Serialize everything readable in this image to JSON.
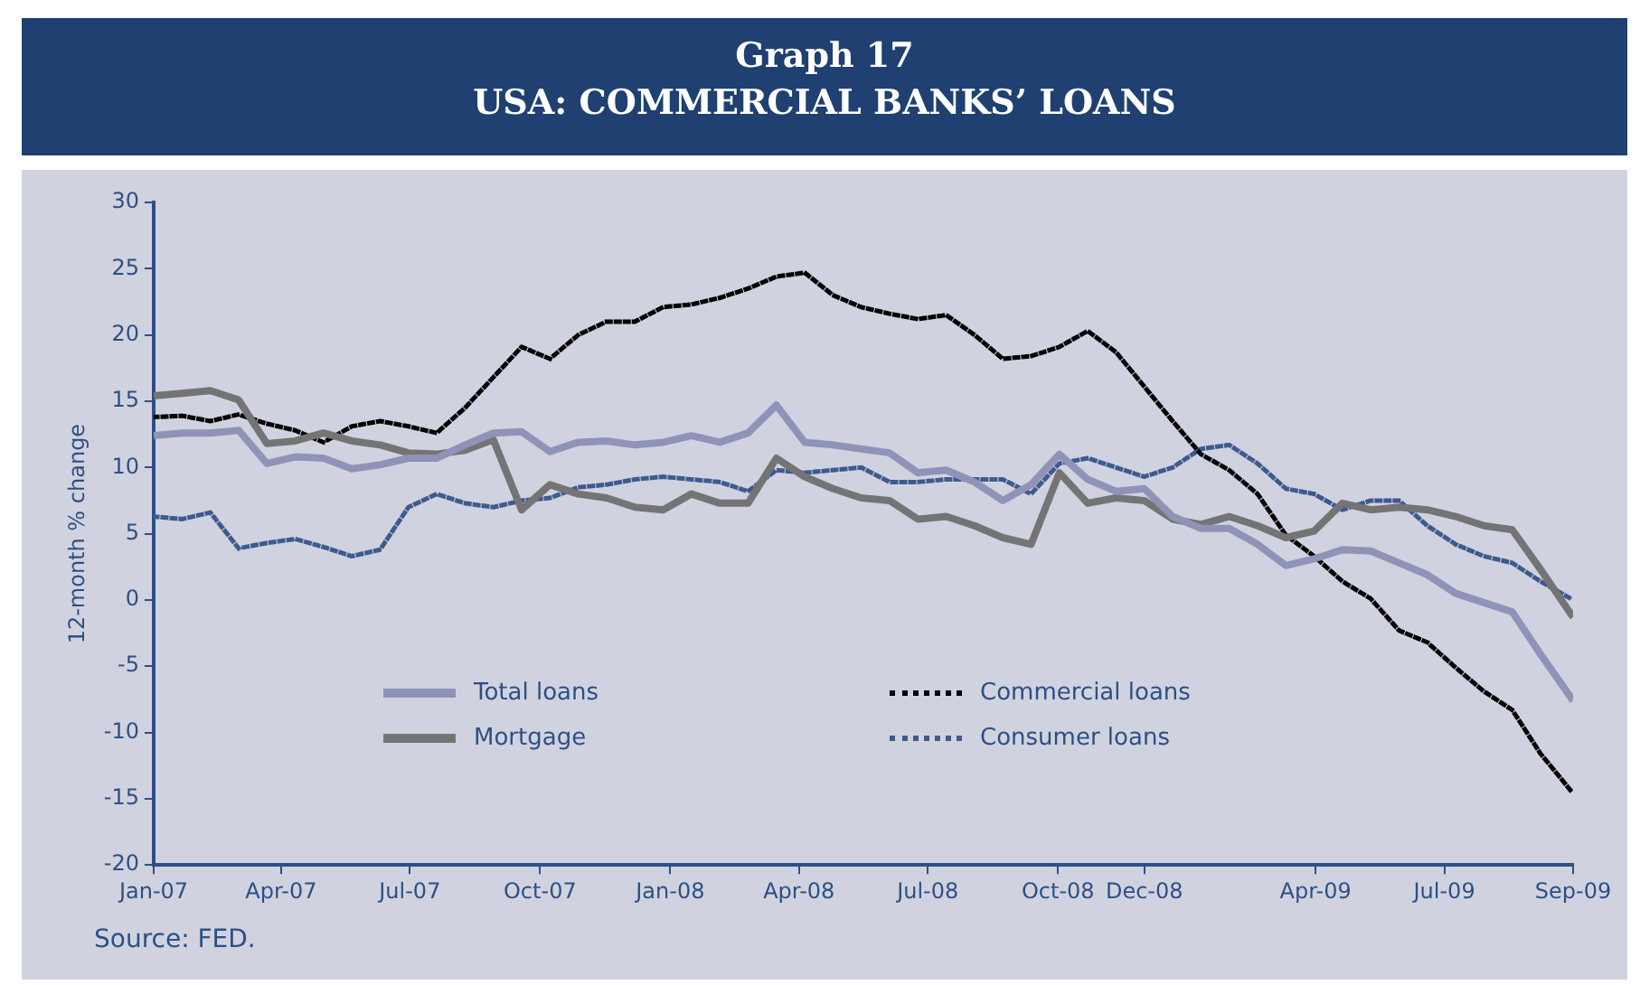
{
  "chart_data": {
    "type": "line",
    "title": "Graph 17",
    "subtitle": "USA: COMMERCIAL BANKS’ LOANS",
    "ylabel": "12-month % change",
    "annotations": [
      "Source: FED."
    ],
    "x": [
      "2007-01-01",
      "2007-01-21",
      "2007-02-10",
      "2007-03-02",
      "2007-03-22",
      "2007-04-11",
      "2007-05-01",
      "2007-05-21",
      "2007-06-10",
      "2007-06-30",
      "2007-07-20",
      "2007-08-09",
      "2007-08-29",
      "2007-09-18",
      "2007-10-08",
      "2007-10-28",
      "2007-11-17",
      "2007-12-07",
      "2007-12-27",
      "2008-01-16",
      "2008-02-05",
      "2008-02-25",
      "2008-03-16",
      "2008-04-05",
      "2008-04-25",
      "2008-05-15",
      "2008-06-04",
      "2008-06-24",
      "2008-07-14",
      "2008-08-03",
      "2008-08-23",
      "2008-09-12",
      "2008-10-02",
      "2008-10-22",
      "2008-11-11",
      "2008-12-01",
      "2008-12-21",
      "2009-01-10",
      "2009-01-30",
      "2009-02-19",
      "2009-03-11",
      "2009-03-31",
      "2009-04-20",
      "2009-05-10",
      "2009-05-30",
      "2009-06-19",
      "2009-07-09",
      "2009-07-29",
      "2009-08-18",
      "2009-09-07",
      "2009-09-30"
    ],
    "series": [
      {
        "name": "Total loans",
        "color": "#8f93b8",
        "line_style": "solid",
        "values": [
          12.4,
          12.6,
          12.6,
          12.8,
          10.3,
          10.8,
          10.7,
          9.9,
          10.2,
          10.7,
          10.7,
          11.7,
          12.6,
          12.7,
          11.2,
          11.9,
          12.0,
          11.7,
          11.9,
          12.4,
          11.9,
          12.6,
          14.7,
          11.9,
          11.7,
          11.4,
          11.1,
          9.6,
          9.8,
          8.9,
          7.5,
          8.7,
          11.0,
          9.1,
          8.2,
          8.4,
          6.3,
          5.4,
          5.4,
          4.2,
          2.6,
          3.1,
          3.8,
          3.7,
          2.8,
          1.9,
          0.5,
          -0.2,
          -0.9,
          -4.1,
          -7.6
        ]
      },
      {
        "name": "Mortgage",
        "color": "#747474",
        "line_style": "solid",
        "values": [
          15.4,
          15.6,
          15.8,
          15.1,
          11.8,
          12.0,
          12.6,
          12.0,
          11.7,
          11.1,
          11.0,
          11.3,
          12.1,
          6.8,
          8.7,
          8.0,
          7.7,
          7.0,
          6.8,
          8.0,
          7.3,
          7.3,
          10.7,
          9.3,
          8.4,
          7.7,
          7.5,
          6.1,
          6.3,
          5.6,
          4.7,
          4.2,
          9.6,
          7.3,
          7.7,
          7.5,
          6.1,
          5.7,
          6.3,
          5.6,
          4.7,
          5.2,
          7.3,
          6.8,
          7.0,
          6.8,
          6.3,
          5.6,
          5.3,
          2.3,
          -1.3
        ]
      },
      {
        "name": "Commercial loans",
        "color": "#000000",
        "line_style": "dotted",
        "values": [
          13.8,
          13.9,
          13.5,
          14.0,
          13.3,
          12.8,
          11.9,
          13.1,
          13.5,
          13.1,
          12.6,
          14.5,
          16.8,
          19.1,
          18.2,
          20.0,
          21.0,
          21.0,
          22.1,
          22.3,
          22.8,
          23.5,
          24.4,
          24.7,
          23.0,
          22.1,
          21.6,
          21.2,
          21.5,
          20.0,
          18.2,
          18.4,
          19.1,
          20.3,
          18.7,
          16.1,
          13.5,
          11.0,
          9.8,
          8.0,
          4.9,
          3.3,
          1.4,
          0.1,
          -2.3,
          -3.2,
          -5.1,
          -6.9,
          -8.3,
          -11.6,
          -14.6
        ]
      },
      {
        "name": "Consumer loans",
        "color": "#3e5a8f",
        "line_style": "dotted",
        "values": [
          6.3,
          6.1,
          6.6,
          3.9,
          4.3,
          4.6,
          4.0,
          3.3,
          3.8,
          7.0,
          8.0,
          7.3,
          7.0,
          7.5,
          7.7,
          8.5,
          8.7,
          9.1,
          9.3,
          9.1,
          8.9,
          8.2,
          9.8,
          9.6,
          9.8,
          10.0,
          8.9,
          8.9,
          9.1,
          9.1,
          9.1,
          8.0,
          10.3,
          10.7,
          10.0,
          9.3,
          10.0,
          11.4,
          11.7,
          10.3,
          8.4,
          8.0,
          6.8,
          7.5,
          7.5,
          5.6,
          4.2,
          3.3,
          2.8,
          1.4,
          0.0
        ]
      }
    ],
    "xlim": [
      "2007-01-01",
      "2009-09-30"
    ],
    "xticks": [
      {
        "value": "2007-01",
        "label": "Jan-07"
      },
      {
        "value": "2007-04",
        "label": "Apr-07"
      },
      {
        "value": "2007-07",
        "label": "Jul-07"
      },
      {
        "value": "2007-10",
        "label": "Oct-07"
      },
      {
        "value": "2008-01",
        "label": "Jan-08"
      },
      {
        "value": "2008-04",
        "label": "Apr-08"
      },
      {
        "value": "2008-07",
        "label": "Jul-08"
      },
      {
        "value": "2008-10",
        "label": "Oct-08"
      },
      {
        "value": "2008-12",
        "label": "Dec-08"
      },
      {
        "value": "2009-04",
        "label": "Apr-09"
      },
      {
        "value": "2009-07",
        "label": "Jul-09"
      },
      {
        "value": "2009-09-30",
        "label": "Sep-09"
      }
    ],
    "ylim": [
      -20,
      30
    ],
    "yticks": [
      -20,
      -15,
      -10,
      -5,
      0,
      5,
      10,
      15,
      20,
      25,
      30
    ],
    "grid": false,
    "legend": "bottom left",
    "marker": "none"
  }
}
